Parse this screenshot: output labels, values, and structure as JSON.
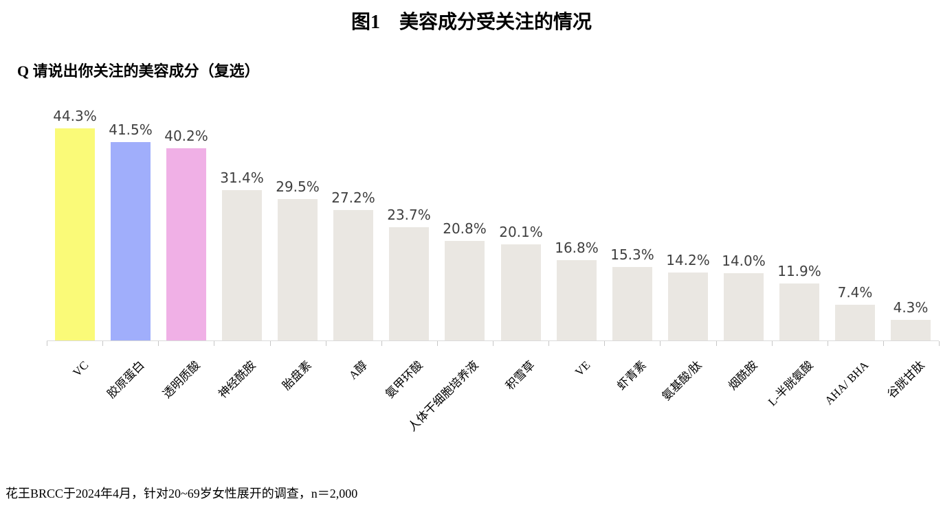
{
  "title": "图1　美容成分受关注的情况",
  "question": "Q 请说出你关注的美容成分（复选）",
  "footnote": "花王BRCC于2024年4月，针对20~69岁女性展开的调查，n＝2,000",
  "colors": {
    "background": "#FFFFFF",
    "axis_line": "#DADADA",
    "tick": "#C6C6C6",
    "value_label": "#3F3F3F",
    "category_label": "#000000",
    "bar_default": "#EAE7E2",
    "highlight_yellow": "#FAFA78",
    "highlight_blue": "#A0AEFB",
    "highlight_pink": "#F0B0E6"
  },
  "chart_data": {
    "type": "bar",
    "title": "图1 美容成分受关注的情况",
    "question": "Q 请说出你关注的美容成分（复选）",
    "source": "花王BRCC于2024年4月，针对20~69岁女性展开的调查，n＝2,000",
    "categories": [
      "VC",
      "胶原蛋白",
      "透明质酸",
      "神经酰胺",
      "胎盘素",
      "A醇",
      "氨甲环酸",
      "人体干细胞培养液",
      "积雪草",
      "VE",
      "虾青素",
      "氨基酸/肽",
      "烟酰胺",
      "L-半胱氨酸",
      "AHA/ BHA",
      "谷胱甘肽"
    ],
    "values": [
      44.3,
      41.5,
      40.2,
      31.4,
      29.5,
      27.2,
      23.7,
      20.8,
      20.1,
      16.8,
      15.3,
      14.2,
      14.0,
      11.9,
      7.4,
      4.3
    ],
    "value_labels": [
      "44.3%",
      "41.5%",
      "40.2%",
      "31.4%",
      "29.5%",
      "27.2%",
      "23.7%",
      "20.8%",
      "20.1%",
      "16.8%",
      "15.3%",
      "14.2%",
      "14.0%",
      "11.9%",
      "7.4%",
      "4.3%"
    ],
    "bar_colors": [
      "#FAFA78",
      "#A0AEFB",
      "#F0B0E6",
      "#EAE7E2",
      "#EAE7E2",
      "#EAE7E2",
      "#EAE7E2",
      "#EAE7E2",
      "#EAE7E2",
      "#EAE7E2",
      "#EAE7E2",
      "#EAE7E2",
      "#EAE7E2",
      "#EAE7E2",
      "#EAE7E2",
      "#EAE7E2"
    ],
    "unit": "%",
    "xlabel": "",
    "ylabel": "",
    "ylim": [
      0,
      47
    ],
    "grid": false,
    "legend": "none",
    "category_label_rotation_deg": 45
  }
}
